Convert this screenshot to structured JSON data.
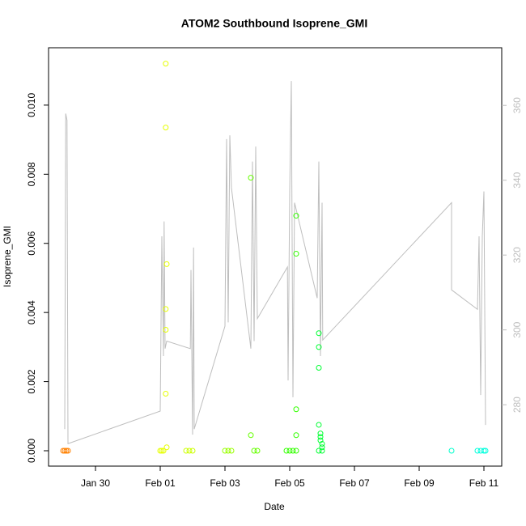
{
  "chart_data": {
    "type": "scatter",
    "title": "ATOM2 Southbound Isoprene_GMI",
    "x_label": "Date",
    "y_label": "Isoprene_GMI",
    "xlim": [
      28.55,
      42.55
    ],
    "xticks": [
      {
        "value": 30,
        "label": "Jan 30"
      },
      {
        "value": 32,
        "label": "Feb 01"
      },
      {
        "value": 34,
        "label": "Feb 03"
      },
      {
        "value": 36,
        "label": "Feb 05"
      },
      {
        "value": 38,
        "label": "Feb 07"
      },
      {
        "value": 40,
        "label": "Feb 09"
      },
      {
        "value": 42,
        "label": "Feb 11"
      }
    ],
    "ylim": [
      -0.000445,
      0.01166
    ],
    "yticks": [
      {
        "value": 0,
        "label": "0.000"
      },
      {
        "value": 0.002,
        "label": "0.002"
      },
      {
        "value": 0.004,
        "label": "0.004"
      },
      {
        "value": 0.006,
        "label": "0.006"
      },
      {
        "value": 0.008,
        "label": "0.008"
      },
      {
        "value": 0.01,
        "label": "0.010"
      }
    ],
    "y2lim": [
      263.6,
      375.4
    ],
    "y2ticks": [
      280,
      300,
      320,
      340,
      360
    ],
    "series": [
      {
        "color": "#ff8000",
        "x": [
          29.0,
          29.05,
          29.1,
          29.15
        ],
        "values": [
          0,
          0,
          0,
          0
        ]
      },
      {
        "color": "#e6ff00",
        "x": [
          32.17,
          32.17,
          32.2,
          32.17,
          32.17,
          32.17,
          32.2,
          32.0,
          32.05,
          32.1
        ],
        "values": [
          0.0112,
          0.00935,
          0.0054,
          0.0041,
          0.0035,
          0.00165,
          0.0001,
          0,
          0,
          0
        ]
      },
      {
        "color": "#ccff00",
        "x": [
          32.8,
          32.9,
          33.0
        ],
        "values": [
          0,
          0,
          0
        ]
      },
      {
        "color": "#99ff00",
        "x": [
          34.0,
          34.1,
          34.2
        ],
        "values": [
          0,
          0,
          0
        ]
      },
      {
        "color": "#66ff00",
        "x": [
          34.8,
          34.8,
          34.9,
          35.0
        ],
        "values": [
          0.0079,
          0.00045,
          0,
          0
        ]
      },
      {
        "color": "#33ff00",
        "x": [
          36.2,
          36.2,
          36.2,
          36.2,
          35.9,
          36.0,
          36.1,
          36.2
        ],
        "values": [
          0.0068,
          0.0057,
          0.0012,
          0.00045,
          0,
          0,
          0,
          0
        ]
      },
      {
        "color": "#00ff33",
        "x": [
          36.9,
          36.9,
          36.9,
          36.9,
          36.95,
          36.95,
          36.95,
          37.0,
          37.0,
          36.9,
          37.0
        ],
        "values": [
          0.0034,
          0.003,
          0.0024,
          0.00075,
          0.0005,
          0.0004,
          0.0003,
          0.0002,
          0.0001,
          0,
          0
        ]
      },
      {
        "color": "#00ffcc",
        "x": [
          41.0
        ],
        "values": [
          0
        ]
      },
      {
        "color": "#00ffdd",
        "x": [
          41.8,
          41.9,
          42.0,
          42.05
        ],
        "values": [
          0,
          0,
          0,
          0
        ]
      },
      {
        "type": "line",
        "axis": "y2",
        "color": "#bebebe",
        "x": [
          29.05,
          29.08,
          29.12,
          29.15,
          32.0,
          32.05,
          32.1,
          32.12,
          32.15,
          32.2,
          32.93,
          32.95,
          33.0,
          33.03,
          33.05,
          34.0,
          34.05,
          34.1,
          34.15,
          34.2,
          34.8,
          34.85,
          34.9,
          34.95,
          35.0,
          35.93,
          35.95,
          36.0,
          36.05,
          36.1,
          36.15,
          36.85,
          36.9,
          36.95,
          37.0,
          37.02,
          41.0,
          41.0,
          41.8,
          41.85,
          41.9,
          41.95,
          42.0,
          42.05
        ],
        "values": [
          273.5,
          357.8,
          356,
          269.6,
          278.3,
          325,
          293,
          329,
          295,
          297,
          295,
          316,
          272,
          322,
          273.5,
          301,
          351,
          302,
          352,
          338,
          295,
          345,
          297,
          349,
          303,
          316.8,
          286.5,
          337,
          366.5,
          282,
          334,
          308.5,
          345,
          293,
          334,
          297.3,
          334,
          310.7,
          305.5,
          325,
          282.6,
          325,
          337,
          274.6
        ]
      }
    ]
  }
}
